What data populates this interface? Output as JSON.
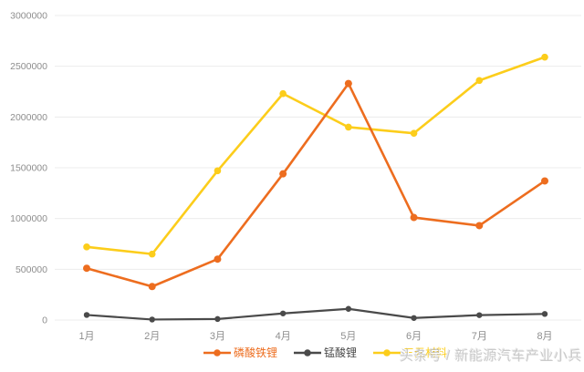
{
  "watermark": {
    "text": "头条号 / 新能源汽车产业小兵"
  },
  "chart_data": {
    "type": "line",
    "title": "",
    "xlabel": "",
    "ylabel": "",
    "categories": [
      "1月",
      "2月",
      "3月",
      "4月",
      "5月",
      "6月",
      "7月",
      "8月"
    ],
    "series": [
      {
        "name": "磷酸铁锂",
        "color": "#ed6d1f",
        "values": [
          510000,
          330000,
          600000,
          1440000,
          2330000,
          1010000,
          930000,
          1370000
        ]
      },
      {
        "name": "锰酸锂",
        "color": "#4a4a4a",
        "values": [
          50000,
          5000,
          10000,
          65000,
          110000,
          20000,
          48000,
          60000
        ]
      },
      {
        "name": "三元材料",
        "color": "#fccd1b",
        "values": [
          720000,
          650000,
          1470000,
          2230000,
          1900000,
          1840000,
          2360000,
          2590000
        ]
      }
    ],
    "ylim": [
      0,
      3000000
    ],
    "ytick_interval": 500000,
    "yticks": [
      "0",
      "500000",
      "1000000",
      "1500000",
      "2000000",
      "2500000",
      "3000000"
    ],
    "grid": true,
    "gridline_color": "#ececec",
    "axis_label_color": "#8e8e8e",
    "legend_position": "bottom"
  }
}
